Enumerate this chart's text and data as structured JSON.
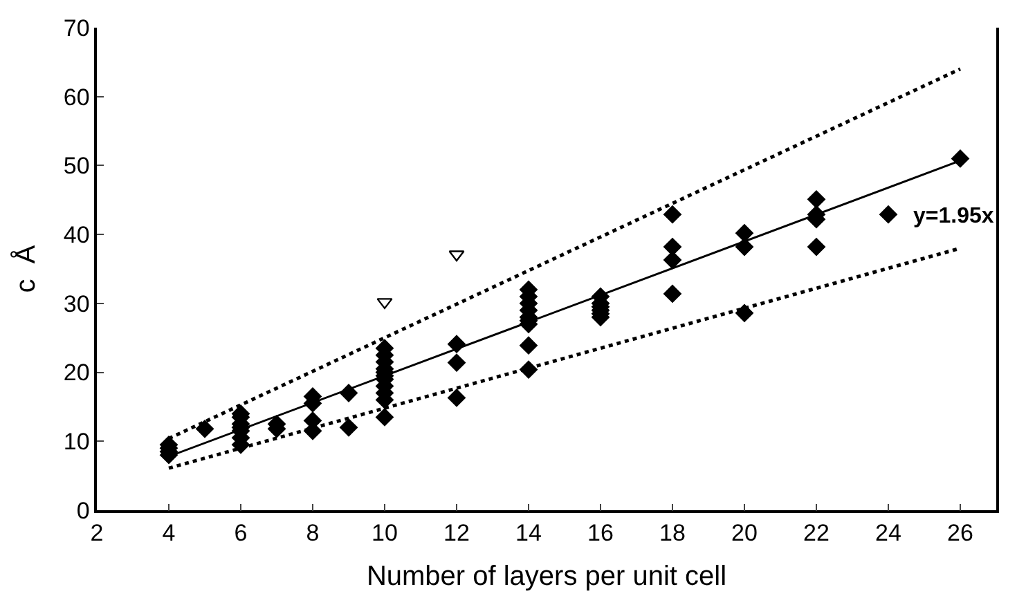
{
  "chart_data": {
    "type": "scatter",
    "xlabel": "Number of layers per unit cell",
    "ylabel": "c  Å",
    "xlim": [
      2,
      27
    ],
    "xticks": [
      2,
      4,
      6,
      8,
      10,
      12,
      14,
      16,
      18,
      20,
      22,
      24,
      26
    ],
    "ylim": [
      0,
      70
    ],
    "yticks": [
      0,
      10,
      20,
      30,
      40,
      50,
      60,
      70
    ],
    "legend": false,
    "marker": "diamond",
    "series": [
      {
        "color": "#000000",
        "x": [
          4,
          4,
          4,
          4,
          5,
          6,
          6,
          6,
          6,
          6,
          6,
          6,
          7,
          7,
          8,
          8,
          8,
          8,
          9,
          9,
          10,
          10,
          10,
          10,
          10,
          10,
          10,
          10,
          10,
          10,
          10,
          12,
          12,
          12,
          14,
          14,
          14,
          14,
          14,
          14,
          14,
          14,
          14,
          16,
          16,
          16,
          16,
          16,
          16,
          18,
          18,
          18,
          18,
          20,
          20,
          20,
          22,
          22,
          22,
          22,
          24,
          26
        ],
        "values": [
          8,
          8.5,
          9,
          9.5,
          11.8,
          9.5,
          10.5,
          11.5,
          12,
          12.5,
          13.5,
          14,
          11.8,
          12.5,
          11.5,
          13,
          15.5,
          16.5,
          12,
          17,
          13.5,
          16,
          17,
          18,
          19,
          19.5,
          20,
          20.5,
          21.5,
          22.5,
          23.5,
          16.3,
          21.4,
          24.1,
          20.4,
          23.9,
          27,
          27.5,
          28,
          29,
          30,
          31,
          32,
          28,
          28.5,
          29,
          29.5,
          30,
          31,
          31.4,
          36.3,
          38.2,
          42.9,
          28.6,
          38.2,
          40.2,
          38.2,
          42.2,
          42.9,
          45.1,
          42.9,
          51
        ]
      },
      {
        "color": "#000000",
        "marker": "triangle",
        "x": [
          10,
          12
        ],
        "values": [
          30.2,
          37.1
        ]
      },
      {
        "type": "line",
        "color": "#000000",
        "line_style": "solid",
        "marker": "none",
        "x": [
          4,
          26
        ],
        "values": [
          7.8,
          50.7
        ]
      },
      {
        "type": "line",
        "color": "#000000",
        "line_style": "dotted",
        "marker": "none",
        "x": [
          4,
          26
        ],
        "values": [
          10.4,
          64
        ]
      },
      {
        "type": "line",
        "color": "#000000",
        "line_style": "dotted",
        "marker": "none",
        "x": [
          4,
          26
        ],
        "values": [
          6.1,
          38
        ]
      }
    ],
    "annotations": [
      "y=1.95x"
    ]
  }
}
